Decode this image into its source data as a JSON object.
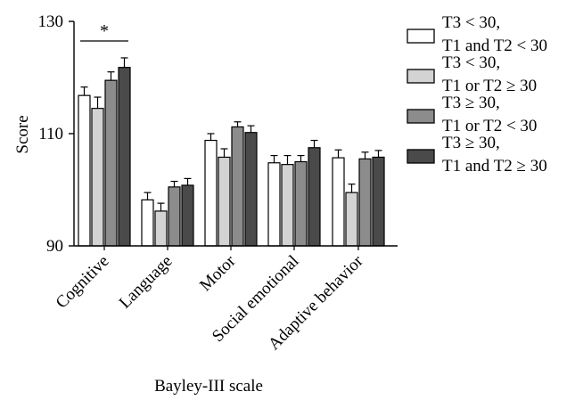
{
  "chart_data": {
    "type": "bar",
    "xlabel": "Bayley-III scale",
    "ylabel": "Score",
    "ylim": [
      90,
      130
    ],
    "yticks": [
      "90",
      "110",
      "130"
    ],
    "categories": [
      "Cognitive",
      "Language",
      "Motor",
      "Social emotional",
      "Adaptive behavior"
    ],
    "legend_position": "top-right",
    "series": [
      {
        "label_line1": "T3 < 30,",
        "label_line2": "T1 and T2 < 30",
        "color": "#ffffff",
        "values": [
          116.8,
          98.2,
          108.8,
          104.8,
          105.7
        ],
        "errors": [
          1.5,
          1.3,
          1.2,
          1.3,
          1.4
        ]
      },
      {
        "label_line1": "T3 < 30,",
        "label_line2": "T1 or T2 ≥ 30",
        "color": "#d3d3d3",
        "values": [
          114.5,
          96.2,
          105.8,
          104.5,
          99.5
        ],
        "errors": [
          2.0,
          1.4,
          1.5,
          1.6,
          1.5
        ]
      },
      {
        "label_line1": "T3 ≥ 30,",
        "label_line2": "T1 or T2 < 30",
        "color": "#8c8c8c",
        "values": [
          119.5,
          100.5,
          111.2,
          105.0,
          105.5
        ],
        "errors": [
          1.5,
          1.0,
          0.9,
          1.1,
          1.2
        ]
      },
      {
        "label_line1": "T3 ≥ 30,",
        "label_line2": "T1 and T2 ≥ 30",
        "color": "#4a4a4a",
        "values": [
          121.8,
          100.8,
          110.2,
          107.5,
          105.8
        ],
        "errors": [
          1.7,
          1.2,
          1.2,
          1.3,
          1.2
        ]
      }
    ],
    "annotations": [
      {
        "text": "*",
        "category": "Cognitive",
        "from_series": 0,
        "to_series": 3
      }
    ]
  }
}
